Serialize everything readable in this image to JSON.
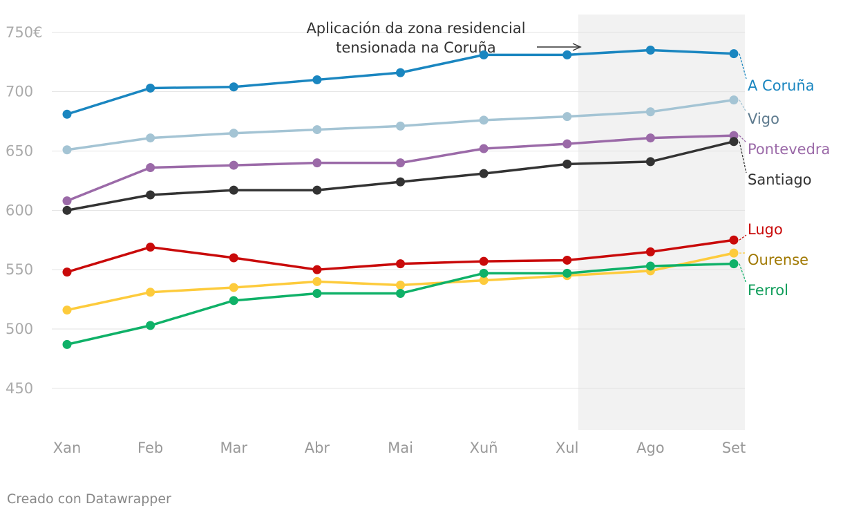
{
  "chart_data": {
    "type": "line",
    "title": "",
    "xlabel": "",
    "ylabel": "",
    "categories": [
      "Xan",
      "Feb",
      "Mar",
      "Abr",
      "Mai",
      "Xuñ",
      "Xul",
      "Ago",
      "Set"
    ],
    "ylim": [
      415,
      765
    ],
    "yticks": [
      450,
      500,
      550,
      600,
      650,
      700,
      750
    ],
    "ytick_labels": [
      "450",
      "500",
      "550",
      "600",
      "650",
      "700",
      "750€"
    ],
    "grid": true,
    "highlight_range": [
      "Xul",
      "Set"
    ],
    "annotation": {
      "line1": "Aplicación da zona residencial",
      "line2": "tensionada na Coruña"
    },
    "series": [
      {
        "name": "A Coruña",
        "color": "#1a86c0",
        "label_color": "#1a86c0",
        "values": [
          681,
          703,
          704,
          710,
          716,
          731,
          731,
          735,
          732
        ]
      },
      {
        "name": "Vigo",
        "color": "#a4c4d4",
        "label_color": "#5d7a8e",
        "values": [
          651,
          661,
          665,
          668,
          671,
          676,
          679,
          683,
          693
        ]
      },
      {
        "name": "Pontevedra",
        "color": "#9b6aa8",
        "label_color": "#9b6aa8",
        "values": [
          608,
          636,
          638,
          640,
          640,
          652,
          656,
          661,
          663
        ]
      },
      {
        "name": "Santiago",
        "color": "#333333",
        "label_color": "#333333",
        "values": [
          600,
          613,
          617,
          617,
          624,
          631,
          639,
          641,
          658
        ]
      },
      {
        "name": "Lugo",
        "color": "#c90a0a",
        "label_color": "#c90a0a",
        "values": [
          548,
          569,
          560,
          550,
          555,
          557,
          558,
          565,
          575
        ]
      },
      {
        "name": "Ourense",
        "color": "#fdcb3c",
        "label_color": "#a07800",
        "values": [
          516,
          531,
          535,
          540,
          537,
          541,
          545,
          549,
          564
        ]
      },
      {
        "name": "Ferrol",
        "color": "#0fb168",
        "label_color": "#0f9d5a",
        "values": [
          487,
          503,
          524,
          530,
          530,
          547,
          547,
          553,
          555
        ]
      }
    ]
  },
  "footer": {
    "credit": "Creado con Datawrapper"
  }
}
